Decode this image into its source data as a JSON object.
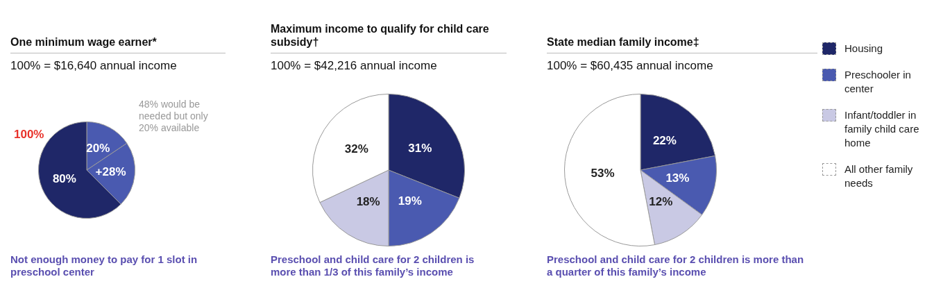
{
  "chart_data": [
    {
      "type": "pie",
      "title": "One minimum wage earner*",
      "subtitle": "100% = $16,640 annual income",
      "categories": [
        null,
        null,
        null
      ],
      "values": [
        20,
        28,
        80
      ],
      "colors": [
        "#4a5ab0",
        "#4a5ab0",
        "#1f2768"
      ],
      "value_labels": [
        "20%",
        "+28%",
        "80%"
      ],
      "annotations": [
        "100%",
        "48% would be needed but only 20% available",
        "Not enough money to pay for 1 slot in preschool center"
      ]
    },
    {
      "type": "pie",
      "title": "Maximum income to qualify for child care subsidy†",
      "subtitle": "100% = $42,216 annual income",
      "categories": [
        null,
        null,
        null,
        null
      ],
      "values": [
        31,
        19,
        18,
        32
      ],
      "colors": [
        "#1f2768",
        "#4a5ab0",
        "#c9c9e4",
        "#ffffff"
      ],
      "value_labels": [
        "31%",
        "19%",
        "18%",
        "32%"
      ],
      "annotations": [
        "Preschool and child care for 2 children is more than 1/3 of this family’s income"
      ]
    },
    {
      "type": "pie",
      "title": "State median family income‡",
      "subtitle": "100% = $60,435 annual income",
      "categories": [
        "Housing",
        "Preschooler in center",
        "Infant/toddler in family child care home",
        "All other family needs"
      ],
      "values": [
        22,
        13,
        12,
        53
      ],
      "colors": [
        "#1f2768",
        "#4a5ab0",
        "#c9c9e4",
        "#ffffff"
      ],
      "value_labels": [
        "22%",
        "13%",
        "12%",
        "53%"
      ],
      "legend": "right",
      "annotations": [
        "Preschool and child care for 2 children is more than a quarter of this family’s income"
      ]
    }
  ]
}
